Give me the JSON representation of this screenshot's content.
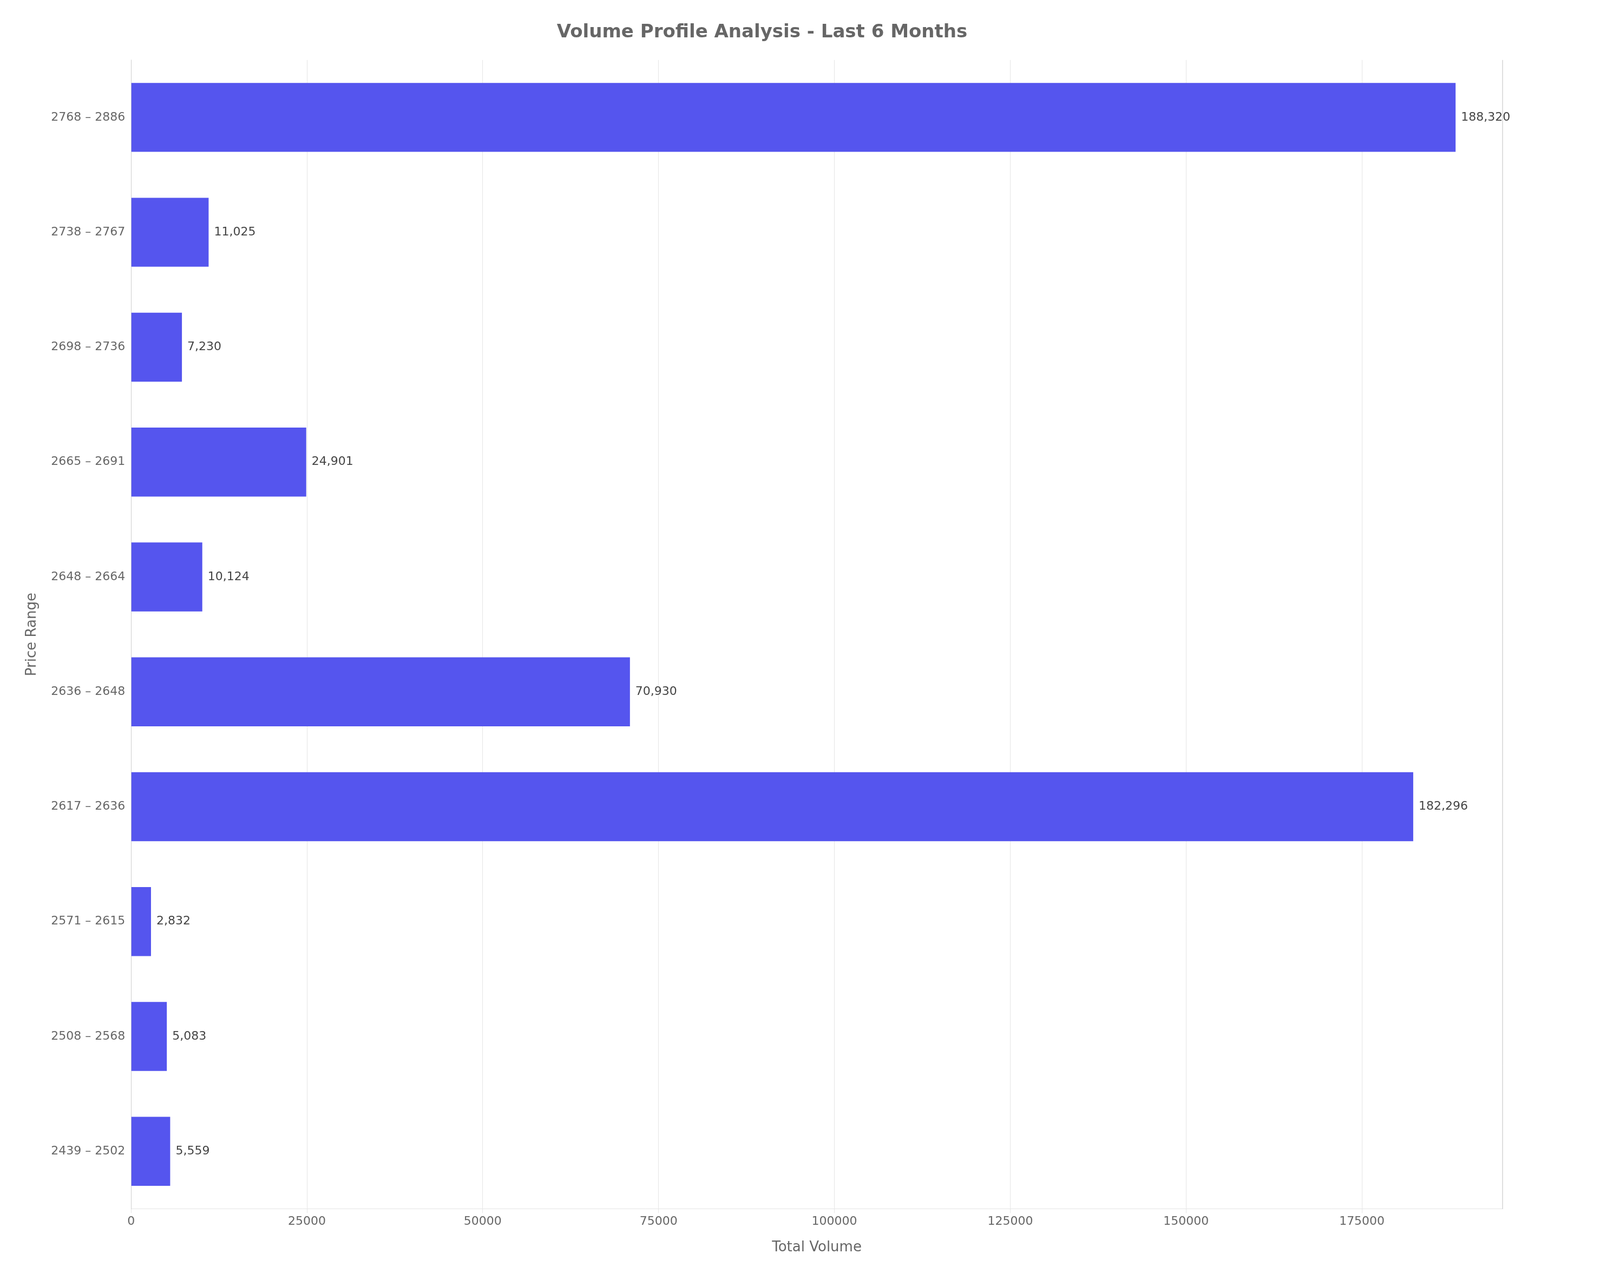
{
  "chart_data": {
    "type": "bar",
    "orientation": "horizontal",
    "title": "Volume Profile Analysis - Last 6 Months",
    "xlabel": "Total Volume",
    "ylabel": "Price Range",
    "categories": [
      "2768 – 2886",
      "2738 – 2767",
      "2698 – 2736",
      "2665 – 2691",
      "2648 – 2664",
      "2636 – 2648",
      "2617 – 2636",
      "2571 – 2615",
      "2508 – 2568",
      "2439 – 2502"
    ],
    "values": [
      188320,
      11025,
      7230,
      24901,
      10124,
      70930,
      182296,
      2832,
      5083,
      5559
    ],
    "value_labels": [
      "188,320",
      "11,025",
      "7,230",
      "24,901",
      "10,124",
      "70,930",
      "182,296",
      "2,832",
      "5,083",
      "5,559"
    ],
    "data_labels": true,
    "color": "#5555EE",
    "xlim": [
      0,
      195000
    ],
    "xticks": [
      0,
      25000,
      50000,
      75000,
      100000,
      125000,
      150000,
      175000
    ],
    "grid": true
  }
}
